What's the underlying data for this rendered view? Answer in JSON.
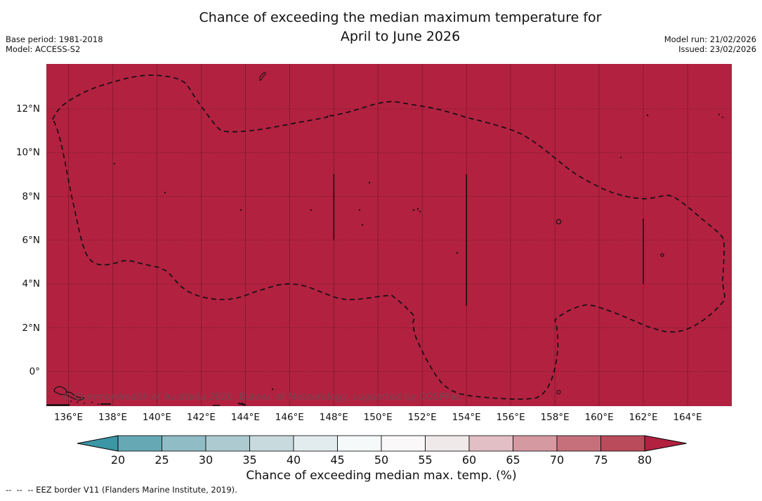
{
  "title": {
    "line1": "Chance of exceeding the median maximum temperature for",
    "line2": "April to June 2026"
  },
  "meta_left": {
    "base_period": "Base period: 1981-2018",
    "model": "Model: ACCESS-S2"
  },
  "meta_right": {
    "model_run": "Model run: 21/02/2026",
    "issued": "Issued: 23/02/2026"
  },
  "map": {
    "watermark": "© Commonwealth of Australia 2026, Bureau of Meteorology, supported by COSPPac",
    "fill_color": "#B22140",
    "gridline_color": "rgba(40,10,15,0.38)",
    "eez_border_color": "#111111",
    "x_ticks": [
      "136°E",
      "138°E",
      "140°E",
      "142°E",
      "144°E",
      "146°E",
      "148°E",
      "150°E",
      "152°E",
      "154°E",
      "156°E",
      "158°E",
      "160°E",
      "162°E",
      "164°E"
    ],
    "y_ticks": [
      "12°N",
      "10°N",
      "8°N",
      "6°N",
      "4°N",
      "2°N",
      "0°"
    ]
  },
  "colorbar": {
    "label": "Chance of exceeding median max. temp. (%)",
    "ticks": [
      "20",
      "25",
      "30",
      "35",
      "40",
      "45",
      "50",
      "55",
      "60",
      "65",
      "70",
      "75",
      "80"
    ],
    "under_color": "#3B96A6",
    "segment_colors": [
      "#66A9B5",
      "#8FBCC5",
      "#ADCAD1",
      "#C8DADD",
      "#E2ECEE",
      "#F6F9F9",
      "#FAF8F8",
      "#EFE9EA",
      "#E2BFC4",
      "#D599A1",
      "#C6707C",
      "#BA4B5B"
    ],
    "over_color": "#B22140"
  },
  "footer": {
    "eez_note": "--  --  -- EEZ border V11 (Flanders Marine Institute, 2019)."
  },
  "chart_data": {
    "type": "map",
    "title": "Chance of exceeding the median maximum temperature for April to June 2026",
    "lon_tick_labels": [
      "136°E",
      "138°E",
      "140°E",
      "142°E",
      "144°E",
      "146°E",
      "148°E",
      "150°E",
      "152°E",
      "154°E",
      "156°E",
      "158°E",
      "160°E",
      "162°E",
      "164°E"
    ],
    "lat_tick_labels": [
      "12°N",
      "10°N",
      "8°N",
      "6°N",
      "4°N",
      "2°N",
      "0°"
    ],
    "colorbar_scale": {
      "ticks": [
        20,
        25,
        30,
        35,
        40,
        45,
        50,
        55,
        60,
        65,
        70,
        75,
        80
      ],
      "units": "%",
      "label": "Chance of exceeding median max. temp. (%)"
    },
    "depicted_field": "entire mapped region shaded in the >80% class"
  }
}
